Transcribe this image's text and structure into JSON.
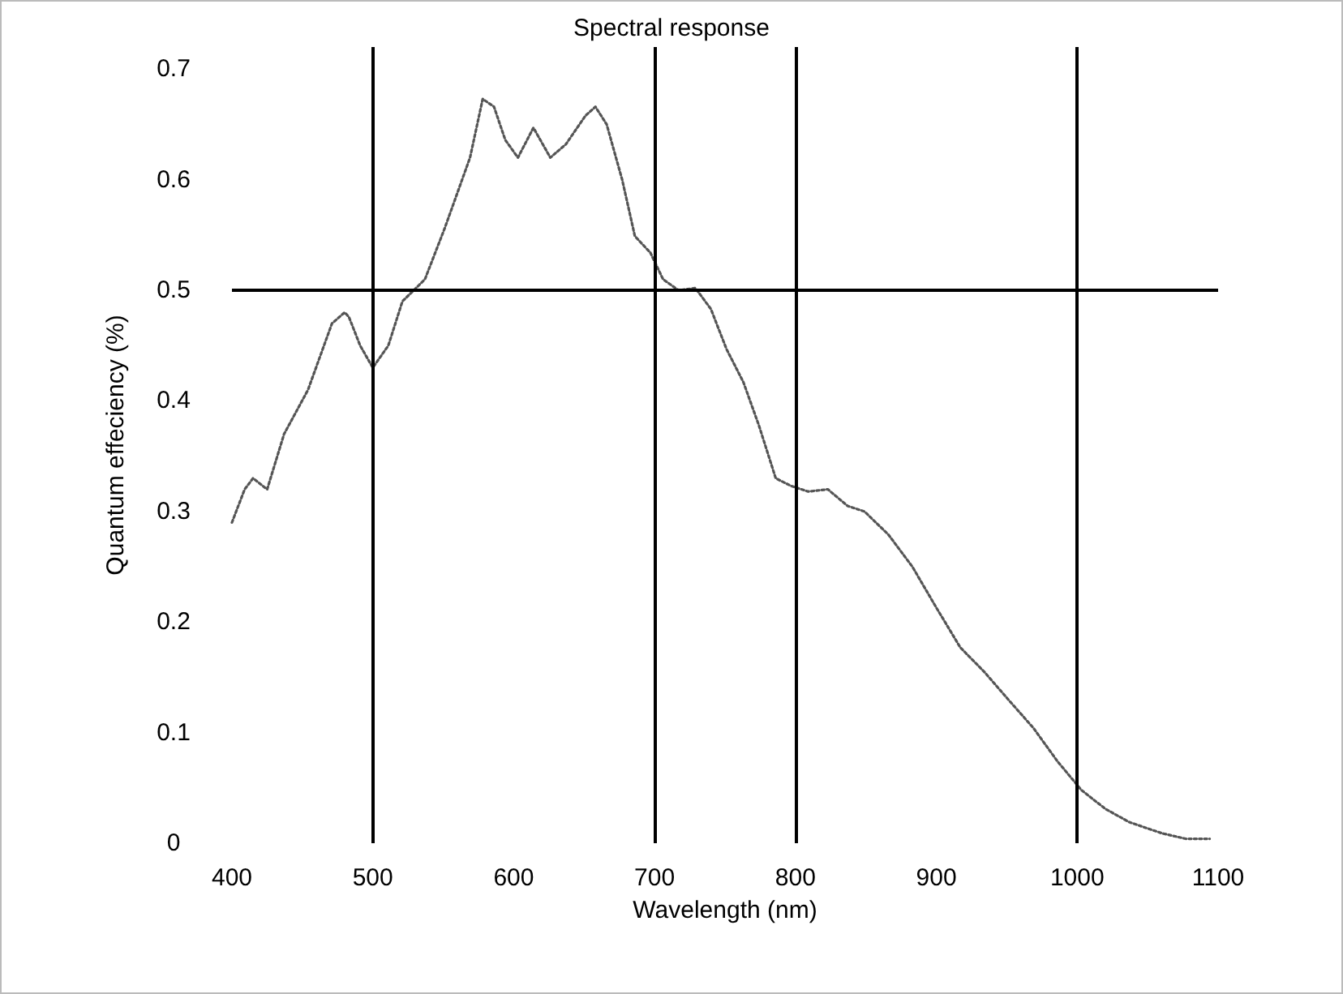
{
  "chart_data": {
    "type": "line",
    "title": "Spectral response",
    "xlabel": "Wavelength (nm)",
    "ylabel": "Quantum effeciency (%)",
    "x": [
      400,
      409,
      415,
      425,
      437,
      454,
      471,
      480,
      483,
      491,
      500,
      511,
      521,
      537,
      551,
      569,
      578,
      586,
      594,
      603,
      614,
      626,
      637,
      651,
      658,
      666,
      677,
      686,
      697,
      706,
      717,
      729,
      740,
      751,
      763,
      774,
      786,
      797,
      809,
      823,
      837,
      849,
      866,
      883,
      900,
      917,
      934,
      951,
      969,
      986,
      1003,
      1020,
      1037,
      1060,
      1077,
      1094
    ],
    "series": [
      {
        "color": "#555555",
        "values": [
          0.29,
          0.32,
          0.33,
          0.32,
          0.37,
          0.41,
          0.47,
          0.48,
          0.476,
          0.45,
          0.43,
          0.45,
          0.49,
          0.51,
          0.556,
          0.62,
          0.673,
          0.666,
          0.636,
          0.62,
          0.647,
          0.62,
          0.632,
          0.658,
          0.666,
          0.65,
          0.6,
          0.549,
          0.534,
          0.51,
          0.5,
          0.502,
          0.483,
          0.447,
          0.417,
          0.378,
          0.33,
          0.323,
          0.318,
          0.32,
          0.305,
          0.3,
          0.279,
          0.25,
          0.213,
          0.177,
          0.155,
          0.13,
          0.104,
          0.074,
          0.048,
          0.031,
          0.019,
          0.009,
          0.004,
          0.004
        ]
      }
    ],
    "xlim": [
      400,
      1100
    ],
    "xticks": [
      400,
      500,
      600,
      700,
      800,
      900,
      1000,
      1100
    ],
    "ylim": [
      0,
      0.72
    ],
    "yticks": [
      0,
      0.1,
      0.2,
      0.3,
      0.4,
      0.5,
      0.6,
      0.7
    ],
    "ref_lines": [
      {
        "axis": "x",
        "value": 500,
        "color": "#000000"
      },
      {
        "axis": "x",
        "value": 700,
        "color": "#000000"
      },
      {
        "axis": "x",
        "value": 800,
        "color": "#000000"
      },
      {
        "axis": "x",
        "value": 1000,
        "color": "#000000"
      },
      {
        "axis": "y",
        "value": 0.5,
        "color": "#000000"
      }
    ],
    "grid": false,
    "marker": "none",
    "line_style": "dotted"
  }
}
